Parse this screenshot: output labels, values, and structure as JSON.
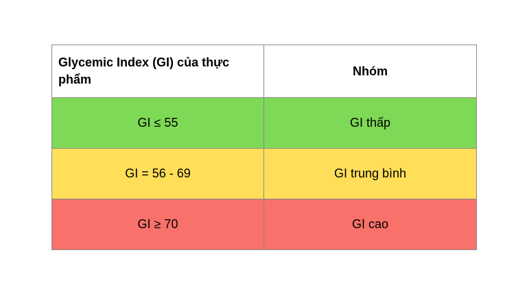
{
  "table": {
    "headers": [
      "Glycemic Index (GI) của thực phẩm",
      "Nhóm"
    ],
    "rows": [
      {
        "gi": "GI ≤ 55",
        "group": "GI thấp",
        "color": "#7ed957"
      },
      {
        "gi": "GI = 56 - 69",
        "group": "GI trung bình",
        "color": "#ffde59"
      },
      {
        "gi": "GI ≥ 70",
        "group": "GI cao",
        "color": "#f8716a"
      }
    ]
  }
}
